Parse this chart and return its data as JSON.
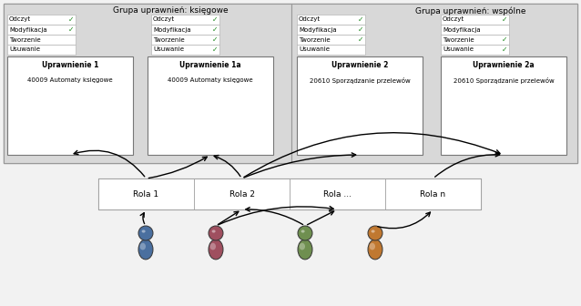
{
  "bg_outer": "#d8d8d8",
  "bg_group": "#d8d8d8",
  "white": "#ffffff",
  "black": "#000000",
  "green_check": "#228B22",
  "group1_label": "Grupa uprawnień: księgowe",
  "group2_label": "Grupa uprawnień: wspólne",
  "perm_items": [
    "Odczyt",
    "Modyfikacja",
    "Tworzenie",
    "Usuwanie"
  ],
  "perm1_checks": [
    true,
    true,
    false,
    false
  ],
  "perm1a_checks": [
    true,
    true,
    true,
    true
  ],
  "perm2_checks": [
    true,
    true,
    true,
    false
  ],
  "perm2a_checks": [
    true,
    false,
    true,
    true
  ],
  "uprawnienie1_title": "Uprawnienie 1",
  "uprawnienie1_sub": "40009 Automaty księgowe",
  "uprawnienie1a_title": "Uprawnienie 1a",
  "uprawnienie1a_sub": "40009 Automaty księgowe",
  "uprawnienie2_title": "Uprawnienie 2",
  "uprawnienie2_sub": "20610 Sporządzanie przelewów",
  "uprawnienie2a_title": "Uprawnienie 2a",
  "uprawnienie2a_sub": "20610 Sporządzanie przelewów",
  "roles": [
    "Rola 1",
    "Rola 2",
    "Rola ...",
    "Rola n"
  ],
  "user_colors": [
    "#4a6f9f",
    "#9f4f5f",
    "#6f8f50",
    "#c07830"
  ],
  "figure_bg": "#f2f2f2",
  "border_color": "#888888",
  "group_border": "#999999"
}
